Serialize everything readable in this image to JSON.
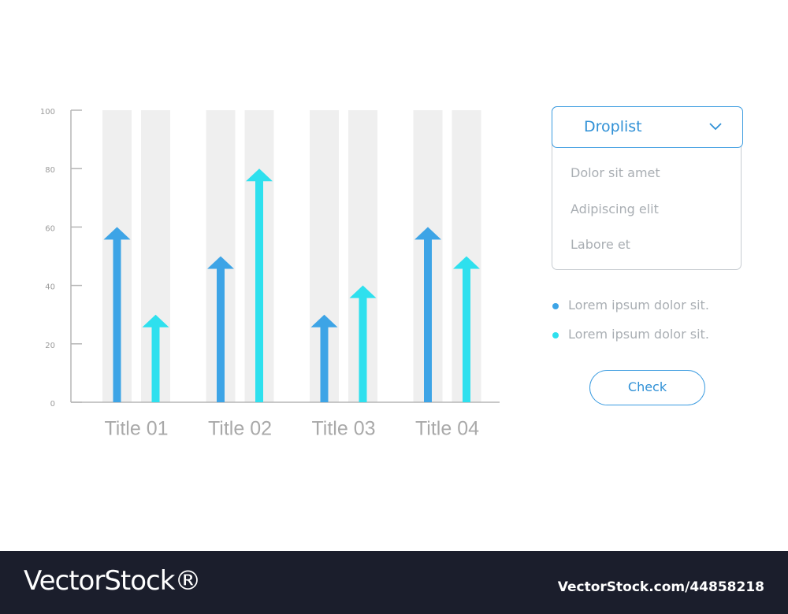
{
  "chart_data": {
    "type": "bar",
    "categories": [
      "Title 01",
      "Title 02",
      "Title 03",
      "Title 04"
    ],
    "series": [
      {
        "name": "Lorem ipsum dolor sit.",
        "color": "#3da4e6",
        "values": [
          60,
          50,
          30,
          60
        ]
      },
      {
        "name": "Lorem ipsum dolor sit.",
        "color": "#2ee0ee",
        "values": [
          30,
          80,
          40,
          50
        ]
      }
    ],
    "ylim": [
      0,
      100
    ],
    "yticks": [
      0,
      20,
      40,
      60,
      80,
      100
    ],
    "grid": false
  },
  "dropdown": {
    "label": "Droplist",
    "options": [
      "Dolor sit amet",
      "Adipiscing elit",
      "Labore et"
    ]
  },
  "button": {
    "label": "Check"
  },
  "footer": {
    "brand": "VectorStock®",
    "id": "VectorStock.com/44858218"
  }
}
